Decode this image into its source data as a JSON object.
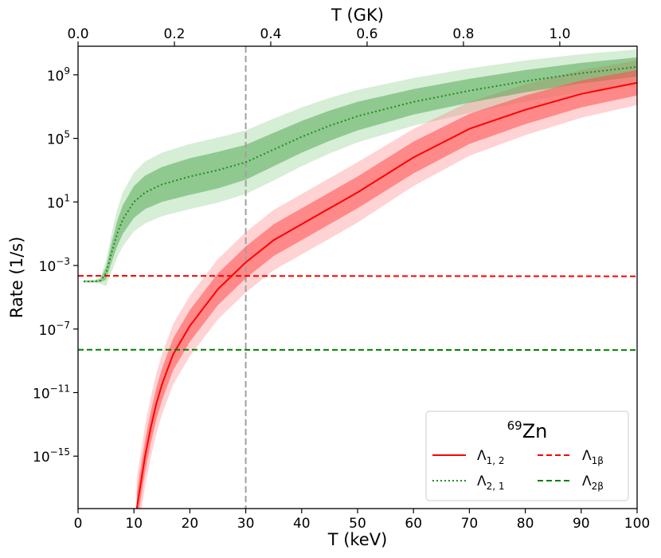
{
  "chart_data": {
    "type": "line",
    "yscale": "log",
    "xlabel": "T (keV)",
    "ylabel": "Rate (1/s)",
    "top_xlabel": "T (GK)",
    "xlim": [
      0,
      100
    ],
    "ylim_log10": [
      -18.3,
      10.8
    ],
    "x_ticks": [
      0,
      10,
      20,
      30,
      40,
      50,
      60,
      70,
      80,
      90,
      100
    ],
    "y_ticks": [
      {
        "exp": 9,
        "base": "10",
        "sup": "9"
      },
      {
        "exp": 5,
        "base": "10",
        "sup": "5"
      },
      {
        "exp": 1,
        "base": "10",
        "sup": "1"
      },
      {
        "exp": -3,
        "base": "10",
        "sup": "−3"
      },
      {
        "exp": -7,
        "base": "10",
        "sup": "−7"
      },
      {
        "exp": -11,
        "base": "10",
        "sup": "−11"
      },
      {
        "exp": -15,
        "base": "10",
        "sup": "−15"
      }
    ],
    "top_ticks": [
      {
        "gk": 0.0,
        "label": "0.0"
      },
      {
        "gk": 0.2,
        "label": "0.2"
      },
      {
        "gk": 0.4,
        "label": "0.4"
      },
      {
        "gk": 0.6,
        "label": "0.6"
      },
      {
        "gk": 0.8,
        "label": "0.8"
      },
      {
        "gk": 1.0,
        "label": "1.0"
      }
    ],
    "keV_per_GK": 86.17,
    "vline_x": 30,
    "series": [
      {
        "name": "Λ2,1",
        "style": "dotted",
        "color": "#228b22",
        "x": [
          1,
          3,
          4,
          5,
          6,
          7,
          8,
          10,
          12,
          15,
          20,
          25,
          30,
          35,
          40,
          45,
          50,
          60,
          70,
          80,
          90,
          100
        ],
        "log10_y": [
          -4.0,
          -4.0,
          -3.95,
          -3.5,
          -2.2,
          -1.0,
          -0.1,
          1.0,
          1.6,
          2.1,
          2.6,
          3.0,
          3.5,
          4.3,
          5.1,
          5.8,
          6.4,
          7.3,
          8.0,
          8.6,
          9.1,
          9.5
        ],
        "band_inner": [
          0.05,
          0.05,
          0.1,
          0.4,
          0.6,
          0.8,
          0.9,
          1.0,
          1.05,
          1.1,
          1.15,
          1.15,
          1.1,
          1.05,
          1.0,
          0.95,
          0.9,
          0.8,
          0.75,
          0.7,
          0.65,
          0.6
        ],
        "band_outer": [
          0.1,
          0.1,
          0.2,
          0.8,
          1.2,
          1.5,
          1.7,
          1.85,
          1.95,
          2.0,
          2.05,
          2.05,
          2.0,
          1.95,
          1.85,
          1.75,
          1.65,
          1.5,
          1.4,
          1.3,
          1.2,
          1.1
        ]
      },
      {
        "name": "Λ1,2",
        "style": "solid",
        "color": "#ff0000",
        "x": [
          10.5,
          11,
          12,
          13,
          14,
          15,
          17,
          20,
          25,
          30,
          35,
          40,
          45,
          50,
          55,
          60,
          70,
          80,
          90,
          100
        ],
        "log10_y": [
          -18.3,
          -17.2,
          -15.0,
          -13.2,
          -11.7,
          -10.5,
          -8.6,
          -6.8,
          -4.5,
          -2.8,
          -1.4,
          -0.4,
          0.6,
          1.6,
          2.7,
          3.8,
          5.6,
          6.8,
          7.8,
          8.5
        ],
        "band_inner": [
          1.0,
          1.0,
          1.0,
          1.0,
          1.0,
          1.0,
          1.0,
          1.0,
          1.0,
          1.0,
          1.0,
          1.0,
          1.0,
          1.0,
          1.0,
          1.0,
          0.95,
          0.9,
          0.85,
          0.8
        ],
        "band_outer": [
          1.9,
          1.9,
          1.9,
          1.9,
          1.9,
          1.9,
          1.9,
          1.9,
          1.9,
          1.9,
          1.9,
          1.9,
          1.9,
          1.9,
          1.85,
          1.8,
          1.7,
          1.6,
          1.5,
          1.4
        ]
      },
      {
        "name": "Λ1β",
        "style": "dashed",
        "color": "#ff0000",
        "x": [
          0,
          100
        ],
        "log10_y": [
          -3.65,
          -3.68
        ]
      },
      {
        "name": "Λ2β",
        "style": "dashed",
        "color": "#008000",
        "x": [
          0,
          100
        ],
        "log10_y": [
          -8.3,
          -8.32
        ]
      }
    ],
    "legend": {
      "position": "lower-right",
      "title_sup": "69",
      "title_main": "Zn",
      "entries": [
        {
          "base": "Λ",
          "sub": "1, 2",
          "style": "solid",
          "color": "#ff0000"
        },
        {
          "base": "Λ",
          "sub": "1β",
          "style": "dashed",
          "color": "#ff0000"
        },
        {
          "base": "Λ",
          "sub": "2, 1",
          "style": "dotted",
          "color": "#228b22"
        },
        {
          "base": "Λ",
          "sub": "2β",
          "style": "dashed",
          "color": "#008000"
        }
      ]
    },
    "colors": {
      "green_inner": "#3a9e3a",
      "green_outer": "#5cb85c",
      "red_inner": "#ff4d4d",
      "red_outer": "#ff8080",
      "vline": "#a0a0a0"
    }
  }
}
